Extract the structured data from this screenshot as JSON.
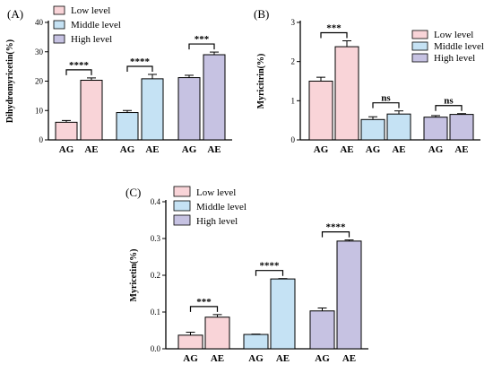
{
  "chart_data": [
    {
      "panel_label": "(A)",
      "type": "bar",
      "ylabel": "Dihydromyricetin(%)",
      "ylim": [
        0,
        40
      ],
      "yticks": [
        0,
        10,
        20,
        30,
        40
      ],
      "tick_labels": [
        "0",
        "10",
        "20",
        "30",
        "40"
      ],
      "legend_position": "top-left",
      "groups": [
        {
          "name": "Low level",
          "color": "#f9d4d8",
          "bars": [
            {
              "label": "AG",
              "value": 6.0,
              "error": 0.6
            },
            {
              "label": "AE",
              "value": 20.3,
              "error": 0.8
            }
          ],
          "significance": "****"
        },
        {
          "name": "Middle level",
          "color": "#c5e2f4",
          "bars": [
            {
              "label": "AG",
              "value": 9.3,
              "error": 0.7
            },
            {
              "label": "AE",
              "value": 20.8,
              "error": 1.5
            }
          ],
          "significance": "****"
        },
        {
          "name": "High level",
          "color": "#c6c2e2",
          "bars": [
            {
              "label": "AG",
              "value": 21.2,
              "error": 0.8
            },
            {
              "label": "AE",
              "value": 29.0,
              "error": 0.9
            }
          ],
          "significance": "***"
        }
      ]
    },
    {
      "panel_label": "(B)",
      "type": "bar",
      "ylabel": "Myricitrin(%)",
      "ylim": [
        0,
        3
      ],
      "yticks": [
        0,
        1,
        2,
        3
      ],
      "tick_labels": [
        "0",
        "1",
        "2",
        "3"
      ],
      "legend_position": "top-right",
      "groups": [
        {
          "name": "Low level",
          "color": "#f9d4d8",
          "bars": [
            {
              "label": "AG",
              "value": 1.5,
              "error": 0.1
            },
            {
              "label": "AE",
              "value": 2.38,
              "error": 0.15
            }
          ],
          "significance": "***"
        },
        {
          "name": "Middle level",
          "color": "#c5e2f4",
          "bars": [
            {
              "label": "AG",
              "value": 0.52,
              "error": 0.07
            },
            {
              "label": "AE",
              "value": 0.66,
              "error": 0.08
            }
          ],
          "significance": "ns"
        },
        {
          "name": "High level",
          "color": "#c6c2e2",
          "bars": [
            {
              "label": "AG",
              "value": 0.58,
              "error": 0.04
            },
            {
              "label": "AE",
              "value": 0.65,
              "error": 0.02
            }
          ],
          "significance": "ns"
        }
      ]
    },
    {
      "panel_label": "(C)",
      "type": "bar",
      "ylabel": "Myricetin(%)",
      "ylim": [
        0,
        0.4
      ],
      "yticks": [
        0,
        0.1,
        0.2,
        0.3,
        0.4
      ],
      "tick_labels": [
        "0.0",
        "0.1",
        "0.2",
        "0.3",
        "0.4"
      ],
      "legend_position": "top-left",
      "groups": [
        {
          "name": "Low level",
          "color": "#f9d4d8",
          "bars": [
            {
              "label": "AG",
              "value": 0.037,
              "error": 0.008
            },
            {
              "label": "AE",
              "value": 0.086,
              "error": 0.007
            }
          ],
          "significance": "***"
        },
        {
          "name": "Middle level",
          "color": "#c5e2f4",
          "bars": [
            {
              "label": "AG",
              "value": 0.039,
              "error": 0.001
            },
            {
              "label": "AE",
              "value": 0.19,
              "error": 0.001
            }
          ],
          "significance": "****"
        },
        {
          "name": "High level",
          "color": "#c6c2e2",
          "bars": [
            {
              "label": "AG",
              "value": 0.103,
              "error": 0.008
            },
            {
              "label": "AE",
              "value": 0.293,
              "error": 0.003
            }
          ],
          "significance": "****"
        }
      ]
    }
  ]
}
